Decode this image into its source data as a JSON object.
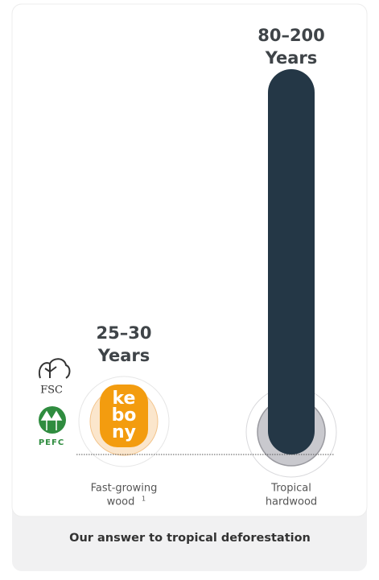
{
  "items": [
    {
      "range": "25–30",
      "unit": "Years",
      "label_line1": "Fast-growing",
      "label_line2": "wood",
      "footnote": "1"
    },
    {
      "range": "80–200",
      "unit": "Years",
      "label_line1": "Tropical",
      "label_line2": "hardwood"
    }
  ],
  "brand": [
    "ke",
    "bo",
    "ny"
  ],
  "logos": {
    "fsc": "FSC",
    "pefc": "PEFC"
  },
  "caption": "Our answer to tropical deforestation"
}
